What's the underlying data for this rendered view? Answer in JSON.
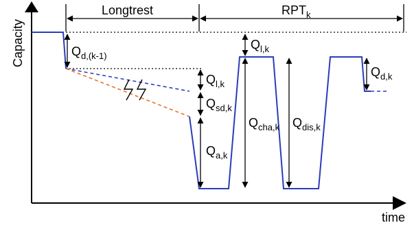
{
  "axes": {
    "y_label": "Capacity",
    "x_label": "time"
  },
  "phases": {
    "longtrest": {
      "label": "Longtrest"
    },
    "rpt": {
      "label": "RPT",
      "subscript": "k"
    }
  },
  "annotations": {
    "q_d_prev": {
      "base": "Q",
      "sub": "d,(k-1)"
    },
    "q_l_top": {
      "base": "Q",
      "sub": "l,k"
    },
    "q_l_mid": {
      "base": "Q",
      "sub": "l,k"
    },
    "q_sd": {
      "base": "Q",
      "sub": "sd,k"
    },
    "q_a": {
      "base": "Q",
      "sub": "a,k"
    },
    "q_cha": {
      "base": "Q",
      "sub": "cha,k"
    },
    "q_dis": {
      "base": "Q",
      "sub": "dis,k"
    },
    "q_d": {
      "base": "Q",
      "sub": "d,k"
    }
  },
  "colors": {
    "curve": "#2b3cb8",
    "dashed_blue": "#2b3cb8",
    "dashed_orange": "#e8732a",
    "reference_dotted": "#000000",
    "axis": "#000000"
  }
}
